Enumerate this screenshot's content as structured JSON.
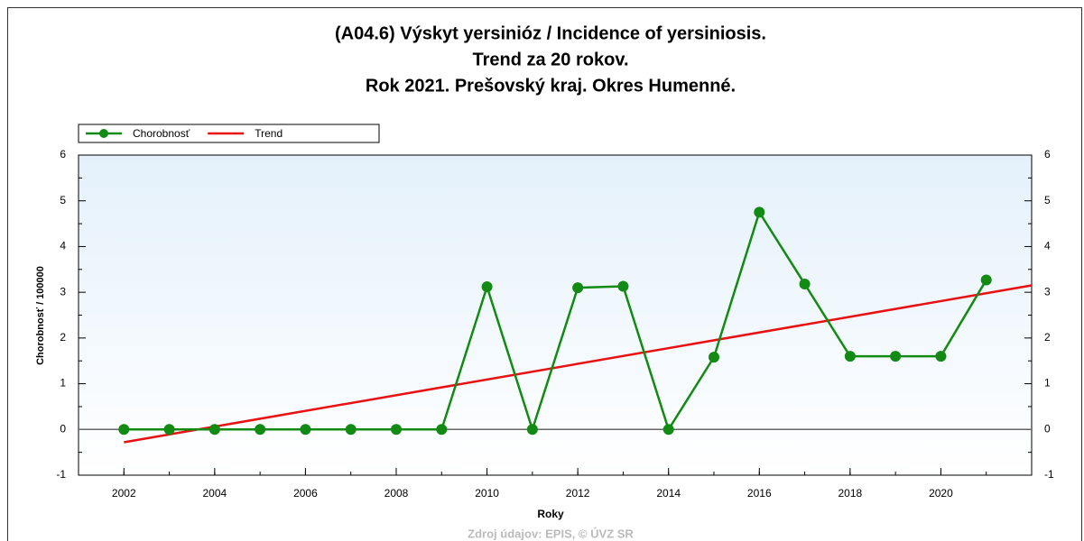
{
  "chart_data": {
    "type": "line",
    "title": [
      "(A04.6) Výskyt yersinióz / Incidence of yersiniosis.",
      "Trend za 20 rokov.",
      "Rok 2021. Prešovský kraj. Okres Humenné."
    ],
    "xlabel": "Roky",
    "ylabel": "Chorobnosť / 100000",
    "source": "Zdroj údajov: EPIS, © ÚVZ SR",
    "series": [
      {
        "name": "Chorobnosť",
        "color": "#138a13",
        "markers": true,
        "x": [
          2002,
          2003,
          2004,
          2005,
          2006,
          2007,
          2008,
          2009,
          2010,
          2011,
          2012,
          2013,
          2014,
          2015,
          2016,
          2017,
          2018,
          2019,
          2020,
          2021
        ],
        "values": [
          0,
          0,
          0,
          0,
          0,
          0,
          0,
          0,
          3.12,
          0,
          3.1,
          3.13,
          0,
          1.58,
          4.75,
          3.18,
          1.6,
          1.6,
          1.6,
          3.27
        ]
      },
      {
        "name": "Trend",
        "color": "#e81010",
        "markers": false,
        "x": [
          2002,
          2022
        ],
        "values": [
          -0.28,
          3.15
        ]
      }
    ],
    "xlim": [
      2001,
      2022
    ],
    "xticks": [
      2002,
      2004,
      2006,
      2008,
      2010,
      2012,
      2014,
      2016,
      2018,
      2020
    ],
    "ylim": [
      -1,
      6
    ],
    "yticks": [
      -1,
      0,
      1,
      2,
      3,
      4,
      5,
      6
    ]
  }
}
